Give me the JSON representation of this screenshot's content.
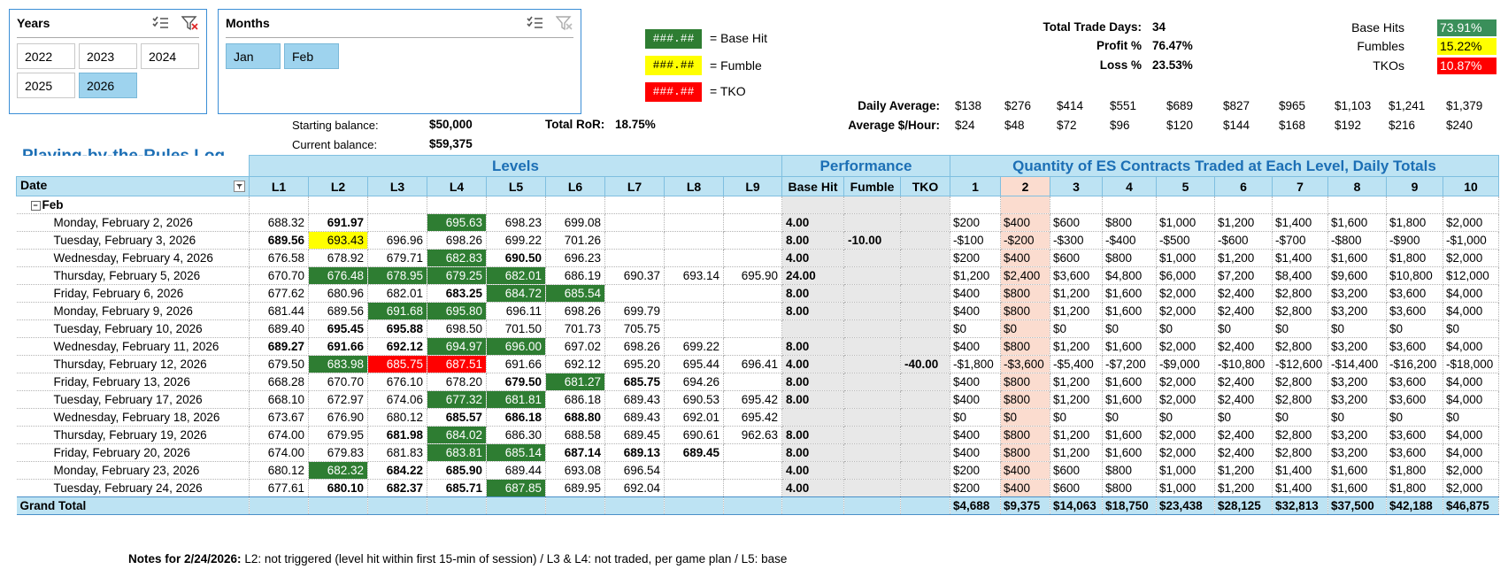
{
  "slicers": {
    "years": {
      "title": "Years",
      "items": [
        "2022",
        "2023",
        "2024",
        "2025",
        "2026"
      ],
      "selected": "2026"
    },
    "months": {
      "title": "Months",
      "items": [
        "Jan",
        "Feb"
      ],
      "selected": [
        "Jan",
        "Feb"
      ]
    }
  },
  "legend": [
    {
      "sample": "###.##",
      "label": "= Base Hit",
      "color": "#2e7d32"
    },
    {
      "sample": "###.##",
      "label": "= Fumble",
      "color": "#ffff00"
    },
    {
      "sample": "###.##",
      "label": "= TKO",
      "color": "#ff0000"
    }
  ],
  "balances": {
    "starting_label": "Starting balance:",
    "starting_value": "$50,000",
    "current_label": "Current balance:",
    "current_value": "$59,375",
    "ror_label": "Total RoR:",
    "ror_value": "18.75%"
  },
  "stats": {
    "total_days_label": "Total Trade Days:",
    "total_days_value": "34",
    "profit_label": "Profit %",
    "profit_value": "76.47%",
    "loss_label": "Loss %",
    "loss_value": "23.53%"
  },
  "rates": {
    "base_hits_label": "Base Hits",
    "base_hits_value": "73.91%",
    "fumbles_label": "Fumbles",
    "fumbles_value": "15.22%",
    "tkos_label": "TKOs",
    "tkos_value": "10.87%"
  },
  "averages": {
    "daily_label": "Daily Average:",
    "daily": [
      "$138",
      "$276",
      "$414",
      "$551",
      "$689",
      "$827",
      "$965",
      "$1,103",
      "$1,241",
      "$1,379"
    ],
    "hourly_label": "Average $/Hour:",
    "hourly": [
      "$24",
      "$48",
      "$72",
      "$96",
      "$120",
      "$144",
      "$168",
      "$192",
      "$216",
      "$240"
    ]
  },
  "log_title": "Playing-by-the-Rules Log",
  "groups": {
    "levels": "Levels",
    "performance": "Performance",
    "quantity": "Quantity of ES Contracts Traded at Each Level, Daily Totals"
  },
  "columns": {
    "date": "Date",
    "levels": [
      "L1",
      "L2",
      "L3",
      "L4",
      "L5",
      "L6",
      "L7",
      "L8",
      "L9"
    ],
    "perf": [
      "Base Hit",
      "Fumble",
      "TKO"
    ],
    "qty": [
      "1",
      "2",
      "3",
      "4",
      "5",
      "6",
      "7",
      "8",
      "9",
      "10"
    ]
  },
  "month_label": "Feb",
  "rows": [
    {
      "date": "Monday, February 2, 2026",
      "levels": [
        [
          "688.32",
          ""
        ],
        [
          "691.97",
          "b"
        ],
        [
          "",
          ""
        ],
        [
          "695.63",
          "bh"
        ],
        [
          "698.23",
          ""
        ],
        [
          "699.08",
          ""
        ],
        [
          "",
          ""
        ],
        [
          "",
          ""
        ],
        [
          "",
          ""
        ]
      ],
      "perf": [
        "4.00",
        "",
        ""
      ],
      "qty": [
        "$200",
        "$400",
        "$600",
        "$800",
        "$1,000",
        "$1,200",
        "$1,400",
        "$1,600",
        "$1,800",
        "$2,000"
      ]
    },
    {
      "date": "Tuesday, February 3, 2026",
      "levels": [
        [
          "689.56",
          "b"
        ],
        [
          "693.43",
          "fb"
        ],
        [
          "696.96",
          ""
        ],
        [
          "698.26",
          ""
        ],
        [
          "699.22",
          ""
        ],
        [
          "701.26",
          ""
        ],
        [
          "",
          ""
        ],
        [
          "",
          ""
        ],
        [
          "",
          ""
        ]
      ],
      "perf": [
        "8.00",
        "-10.00",
        ""
      ],
      "qty": [
        "-$100",
        "-$200",
        "-$300",
        "-$400",
        "-$500",
        "-$600",
        "-$700",
        "-$800",
        "-$900",
        "-$1,000"
      ]
    },
    {
      "date": "Wednesday, February 4, 2026",
      "levels": [
        [
          "676.58",
          ""
        ],
        [
          "678.92",
          ""
        ],
        [
          "679.71",
          ""
        ],
        [
          "682.83",
          "bh"
        ],
        [
          "690.50",
          "b"
        ],
        [
          "696.23",
          ""
        ],
        [
          "",
          ""
        ],
        [
          "",
          ""
        ],
        [
          "",
          ""
        ]
      ],
      "perf": [
        "4.00",
        "",
        ""
      ],
      "qty": [
        "$200",
        "$400",
        "$600",
        "$800",
        "$1,000",
        "$1,200",
        "$1,400",
        "$1,600",
        "$1,800",
        "$2,000"
      ]
    },
    {
      "date": "Thursday, February 5, 2026",
      "levels": [
        [
          "670.70",
          ""
        ],
        [
          "676.48",
          "bh"
        ],
        [
          "678.95",
          "bh"
        ],
        [
          "679.25",
          "bh"
        ],
        [
          "682.01",
          "bh"
        ],
        [
          "686.19",
          ""
        ],
        [
          "690.37",
          ""
        ],
        [
          "693.14",
          ""
        ],
        [
          "695.90",
          ""
        ]
      ],
      "perf": [
        "24.00",
        "",
        ""
      ],
      "qty": [
        "$1,200",
        "$2,400",
        "$3,600",
        "$4,800",
        "$6,000",
        "$7,200",
        "$8,400",
        "$9,600",
        "$10,800",
        "$12,000"
      ]
    },
    {
      "date": "Friday, February 6, 2026",
      "levels": [
        [
          "677.62",
          ""
        ],
        [
          "680.96",
          ""
        ],
        [
          "682.01",
          ""
        ],
        [
          "683.25",
          "b"
        ],
        [
          "684.72",
          "bh"
        ],
        [
          "685.54",
          "bh"
        ],
        [
          "",
          ""
        ],
        [
          "",
          ""
        ],
        [
          "",
          ""
        ]
      ],
      "perf": [
        "8.00",
        "",
        ""
      ],
      "qty": [
        "$400",
        "$800",
        "$1,200",
        "$1,600",
        "$2,000",
        "$2,400",
        "$2,800",
        "$3,200",
        "$3,600",
        "$4,000"
      ]
    },
    {
      "date": "Monday, February 9, 2026",
      "levels": [
        [
          "681.44",
          ""
        ],
        [
          "689.56",
          ""
        ],
        [
          "691.68",
          "bh"
        ],
        [
          "695.80",
          "bh"
        ],
        [
          "696.11",
          ""
        ],
        [
          "698.26",
          ""
        ],
        [
          "699.79",
          ""
        ],
        [
          "",
          ""
        ],
        [
          "",
          ""
        ]
      ],
      "perf": [
        "8.00",
        "",
        ""
      ],
      "qty": [
        "$400",
        "$800",
        "$1,200",
        "$1,600",
        "$2,000",
        "$2,400",
        "$2,800",
        "$3,200",
        "$3,600",
        "$4,000"
      ]
    },
    {
      "date": "Tuesday, February 10, 2026",
      "levels": [
        [
          "689.40",
          ""
        ],
        [
          "695.45",
          "b"
        ],
        [
          "695.88",
          "b"
        ],
        [
          "698.50",
          ""
        ],
        [
          "701.50",
          ""
        ],
        [
          "701.73",
          ""
        ],
        [
          "705.75",
          ""
        ],
        [
          "",
          ""
        ],
        [
          "",
          ""
        ]
      ],
      "perf": [
        "",
        "",
        ""
      ],
      "qty": [
        "$0",
        "$0",
        "$0",
        "$0",
        "$0",
        "$0",
        "$0",
        "$0",
        "$0",
        "$0"
      ]
    },
    {
      "date": "Wednesday, February 11, 2026",
      "levels": [
        [
          "689.27",
          "b"
        ],
        [
          "691.66",
          "b"
        ],
        [
          "692.12",
          "b"
        ],
        [
          "694.97",
          "bh"
        ],
        [
          "696.00",
          "bh"
        ],
        [
          "697.02",
          ""
        ],
        [
          "698.26",
          ""
        ],
        [
          "699.22",
          ""
        ],
        [
          "",
          ""
        ]
      ],
      "perf": [
        "8.00",
        "",
        ""
      ],
      "qty": [
        "$400",
        "$800",
        "$1,200",
        "$1,600",
        "$2,000",
        "$2,400",
        "$2,800",
        "$3,200",
        "$3,600",
        "$4,000"
      ]
    },
    {
      "date": "Thursday, February 12, 2026",
      "levels": [
        [
          "679.50",
          ""
        ],
        [
          "683.98",
          "bh"
        ],
        [
          "685.75",
          "tk"
        ],
        [
          "687.51",
          "tk"
        ],
        [
          "691.66",
          ""
        ],
        [
          "692.12",
          ""
        ],
        [
          "695.20",
          ""
        ],
        [
          "695.44",
          ""
        ],
        [
          "696.41",
          ""
        ]
      ],
      "perf": [
        "4.00",
        "",
        "-40.00"
      ],
      "qty": [
        "-$1,800",
        "-$3,600",
        "-$5,400",
        "-$7,200",
        "-$9,000",
        "-$10,800",
        "-$12,600",
        "-$14,400",
        "-$16,200",
        "-$18,000"
      ]
    },
    {
      "date": "Friday, February 13, 2026",
      "levels": [
        [
          "668.28",
          ""
        ],
        [
          "670.70",
          ""
        ],
        [
          "676.10",
          ""
        ],
        [
          "678.20",
          ""
        ],
        [
          "679.50",
          "b"
        ],
        [
          "681.27",
          "bh"
        ],
        [
          "685.75",
          "b"
        ],
        [
          "694.26",
          ""
        ],
        [
          "",
          ""
        ]
      ],
      "perf": [
        "8.00",
        "",
        ""
      ],
      "qty": [
        "$400",
        "$800",
        "$1,200",
        "$1,600",
        "$2,000",
        "$2,400",
        "$2,800",
        "$3,200",
        "$3,600",
        "$4,000"
      ]
    },
    {
      "date": "Tuesday, February 17, 2026",
      "levels": [
        [
          "668.10",
          ""
        ],
        [
          "672.97",
          ""
        ],
        [
          "674.06",
          ""
        ],
        [
          "677.32",
          "bh"
        ],
        [
          "681.81",
          "bh"
        ],
        [
          "686.18",
          ""
        ],
        [
          "689.43",
          ""
        ],
        [
          "690.53",
          ""
        ],
        [
          "695.42",
          ""
        ]
      ],
      "perf": [
        "8.00",
        "",
        ""
      ],
      "qty": [
        "$400",
        "$800",
        "$1,200",
        "$1,600",
        "$2,000",
        "$2,400",
        "$2,800",
        "$3,200",
        "$3,600",
        "$4,000"
      ]
    },
    {
      "date": "Wednesday, February 18, 2026",
      "levels": [
        [
          "673.67",
          ""
        ],
        [
          "676.90",
          ""
        ],
        [
          "680.12",
          ""
        ],
        [
          "685.57",
          "b"
        ],
        [
          "686.18",
          "b"
        ],
        [
          "688.80",
          "b"
        ],
        [
          "689.43",
          ""
        ],
        [
          "692.01",
          ""
        ],
        [
          "695.42",
          ""
        ]
      ],
      "perf": [
        "",
        "",
        ""
      ],
      "qty": [
        "$0",
        "$0",
        "$0",
        "$0",
        "$0",
        "$0",
        "$0",
        "$0",
        "$0",
        "$0"
      ]
    },
    {
      "date": "Thursday, February 19, 2026",
      "levels": [
        [
          "674.00",
          ""
        ],
        [
          "679.95",
          ""
        ],
        [
          "681.98",
          "b"
        ],
        [
          "684.02",
          "bh"
        ],
        [
          "686.30",
          ""
        ],
        [
          "688.58",
          ""
        ],
        [
          "689.45",
          ""
        ],
        [
          "690.61",
          ""
        ],
        [
          "962.63",
          ""
        ]
      ],
      "perf": [
        "8.00",
        "",
        ""
      ],
      "qty": [
        "$400",
        "$800",
        "$1,200",
        "$1,600",
        "$2,000",
        "$2,400",
        "$2,800",
        "$3,200",
        "$3,600",
        "$4,000"
      ]
    },
    {
      "date": "Friday, February 20, 2026",
      "levels": [
        [
          "674.00",
          ""
        ],
        [
          "679.83",
          ""
        ],
        [
          "681.83",
          ""
        ],
        [
          "683.81",
          "bh"
        ],
        [
          "685.14",
          "bh"
        ],
        [
          "687.14",
          "b"
        ],
        [
          "689.13",
          "b"
        ],
        [
          "689.45",
          "b"
        ],
        [
          "",
          ""
        ]
      ],
      "perf": [
        "8.00",
        "",
        ""
      ],
      "qty": [
        "$400",
        "$800",
        "$1,200",
        "$1,600",
        "$2,000",
        "$2,400",
        "$2,800",
        "$3,200",
        "$3,600",
        "$4,000"
      ]
    },
    {
      "date": "Monday, February 23, 2026",
      "levels": [
        [
          "680.12",
          ""
        ],
        [
          "682.32",
          "bh"
        ],
        [
          "684.22",
          "b"
        ],
        [
          "685.90",
          "b"
        ],
        [
          "689.44",
          ""
        ],
        [
          "693.08",
          ""
        ],
        [
          "696.54",
          ""
        ],
        [
          "",
          ""
        ],
        [
          "",
          ""
        ]
      ],
      "perf": [
        "4.00",
        "",
        ""
      ],
      "qty": [
        "$200",
        "$400",
        "$600",
        "$800",
        "$1,000",
        "$1,200",
        "$1,400",
        "$1,600",
        "$1,800",
        "$2,000"
      ]
    },
    {
      "date": "Tuesday, February 24, 2026",
      "levels": [
        [
          "677.61",
          ""
        ],
        [
          "680.10",
          "b"
        ],
        [
          "682.37",
          "b"
        ],
        [
          "685.71",
          "b"
        ],
        [
          "687.85",
          "bh"
        ],
        [
          "689.95",
          ""
        ],
        [
          "692.04",
          ""
        ],
        [
          "",
          ""
        ],
        [
          "",
          ""
        ]
      ],
      "perf": [
        "4.00",
        "",
        ""
      ],
      "qty": [
        "$200",
        "$400",
        "$600",
        "$800",
        "$1,000",
        "$1,200",
        "$1,400",
        "$1,600",
        "$1,800",
        "$2,000"
      ]
    }
  ],
  "grand_total": {
    "label": "Grand Total",
    "qty": [
      "$4,688",
      "$9,375",
      "$14,063",
      "$18,750",
      "$23,438",
      "$28,125",
      "$32,813",
      "$37,500",
      "$42,188",
      "$46,875"
    ]
  },
  "notes": {
    "label": "Notes for 2/24/2026:",
    "text": "L2: not triggered (level hit within first 15-min of session) / L3 & L4: not traded, per game plan / L5: base"
  }
}
